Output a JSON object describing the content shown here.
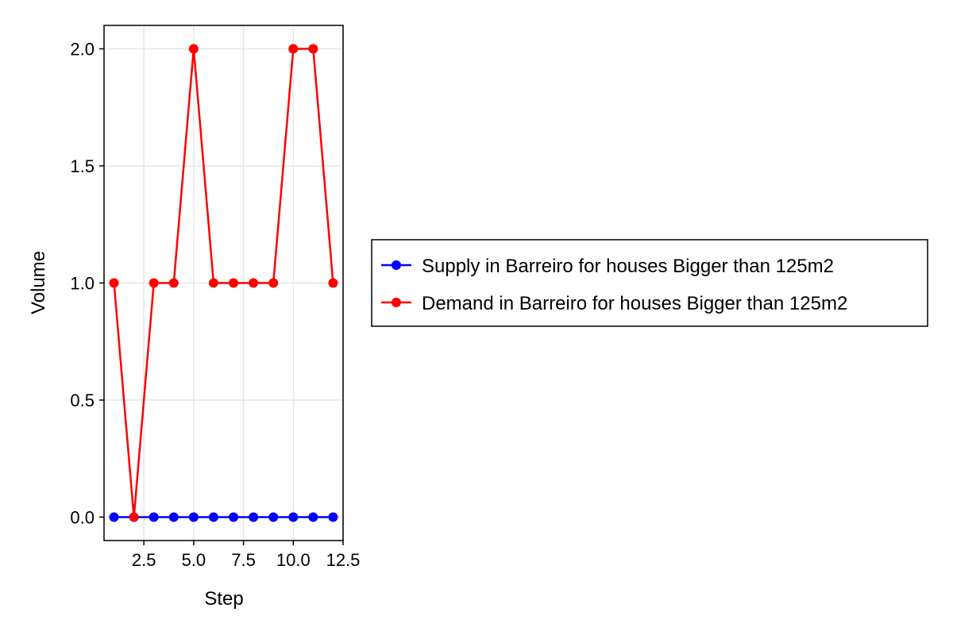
{
  "chart_data": {
    "type": "line",
    "title": "",
    "xlabel": "Step",
    "ylabel": "Volume",
    "x": [
      1,
      2,
      3,
      4,
      5,
      6,
      7,
      8,
      9,
      10,
      11,
      12
    ],
    "xlim": [
      0.5,
      12.5
    ],
    "ylim": [
      -0.1,
      2.1
    ],
    "x_ticks": [
      2.5,
      5.0,
      7.5,
      10.0,
      12.5
    ],
    "x_tick_labels": [
      "2.5",
      "5.0",
      "7.5",
      "10.0",
      "12.5"
    ],
    "y_ticks": [
      0.0,
      0.5,
      1.0,
      1.5,
      2.0
    ],
    "y_tick_labels": [
      "0.0",
      "0.5",
      "1.0",
      "1.5",
      "2.0"
    ],
    "grid": true,
    "legend_placement": "right",
    "series": [
      {
        "name": "Supply in Barreiro for houses Bigger than 125m2",
        "color": "#0000ff",
        "values": [
          0,
          0,
          0,
          0,
          0,
          0,
          0,
          0,
          0,
          0,
          0,
          0
        ]
      },
      {
        "name": "Demand in Barreiro for houses Bigger than 125m2",
        "color": "#ff0000",
        "values": [
          1,
          0,
          1,
          1,
          2,
          1,
          1,
          1,
          1,
          2,
          2,
          1
        ]
      }
    ]
  }
}
